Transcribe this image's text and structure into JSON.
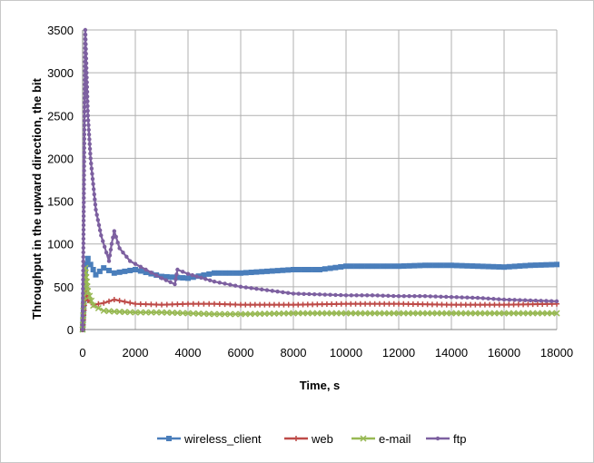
{
  "chart_data": {
    "type": "line",
    "title": "",
    "xlabel": "Time, s",
    "ylabel": "Throughput in the upward direction, the bit",
    "xlim": [
      0,
      18000
    ],
    "ylim": [
      0,
      3500
    ],
    "xticks": [
      0,
      2000,
      4000,
      6000,
      8000,
      10000,
      12000,
      14000,
      16000,
      18000
    ],
    "yticks": [
      0,
      500,
      1000,
      1500,
      2000,
      2500,
      3000,
      3500
    ],
    "xtick_labels": [
      "0",
      "2000",
      "4000",
      "6000",
      "8000",
      "10000",
      "12000",
      "14000",
      "16000",
      "18000"
    ],
    "ytick_labels": [
      "0",
      "500",
      "1000",
      "1500",
      "2000",
      "2500",
      "3000",
      "3500"
    ],
    "grid": true,
    "legend_position": "bottom",
    "series": [
      {
        "name": "wireless_client",
        "color": "#4a7ebb",
        "marker": "square",
        "x": [
          0,
          100,
          200,
          300,
          500,
          800,
          1200,
          2000,
          3000,
          4000,
          5000,
          6000,
          7000,
          8000,
          9000,
          10000,
          11000,
          12000,
          13000,
          14000,
          15000,
          16000,
          17000,
          18000
        ],
        "y": [
          0,
          700,
          830,
          760,
          640,
          720,
          660,
          700,
          620,
          600,
          660,
          660,
          680,
          700,
          700,
          740,
          740,
          740,
          750,
          750,
          740,
          730,
          750,
          760
        ]
      },
      {
        "name": "web",
        "color": "#be4b48",
        "marker": "plus",
        "x": [
          0,
          100,
          200,
          400,
          800,
          1200,
          2000,
          3000,
          4000,
          5000,
          6000,
          8000,
          10000,
          12000,
          14000,
          16000,
          18000
        ],
        "y": [
          0,
          450,
          340,
          290,
          310,
          350,
          300,
          290,
          300,
          300,
          290,
          290,
          300,
          300,
          290,
          290,
          300
        ]
      },
      {
        "name": "e-mail",
        "color": "#98b954",
        "marker": "x",
        "x": [
          0,
          100,
          200,
          400,
          800,
          1200,
          2000,
          3000,
          4000,
          5000,
          6000,
          8000,
          10000,
          12000,
          14000,
          16000,
          18000
        ],
        "y": [
          0,
          720,
          450,
          280,
          220,
          210,
          200,
          200,
          190,
          180,
          180,
          190,
          190,
          190,
          190,
          190,
          190
        ]
      },
      {
        "name": "ftp",
        "color": "#7d60a0",
        "marker": "dot",
        "x": [
          0,
          100,
          150,
          200,
          300,
          400,
          500,
          700,
          900,
          1000,
          1100,
          1200,
          1400,
          1800,
          2400,
          3000,
          3500,
          3600,
          4000,
          5000,
          6000,
          7000,
          8000,
          9000,
          10000,
          11000,
          12000,
          13000,
          14000,
          15000,
          16000,
          17000,
          18000
        ],
        "y": [
          0,
          3500,
          3000,
          2500,
          2000,
          1700,
          1400,
          1100,
          900,
          800,
          1000,
          1150,
          950,
          800,
          700,
          600,
          530,
          700,
          650,
          560,
          500,
          460,
          420,
          410,
          400,
          400,
          390,
          390,
          380,
          370,
          350,
          340,
          330
        ]
      }
    ]
  }
}
